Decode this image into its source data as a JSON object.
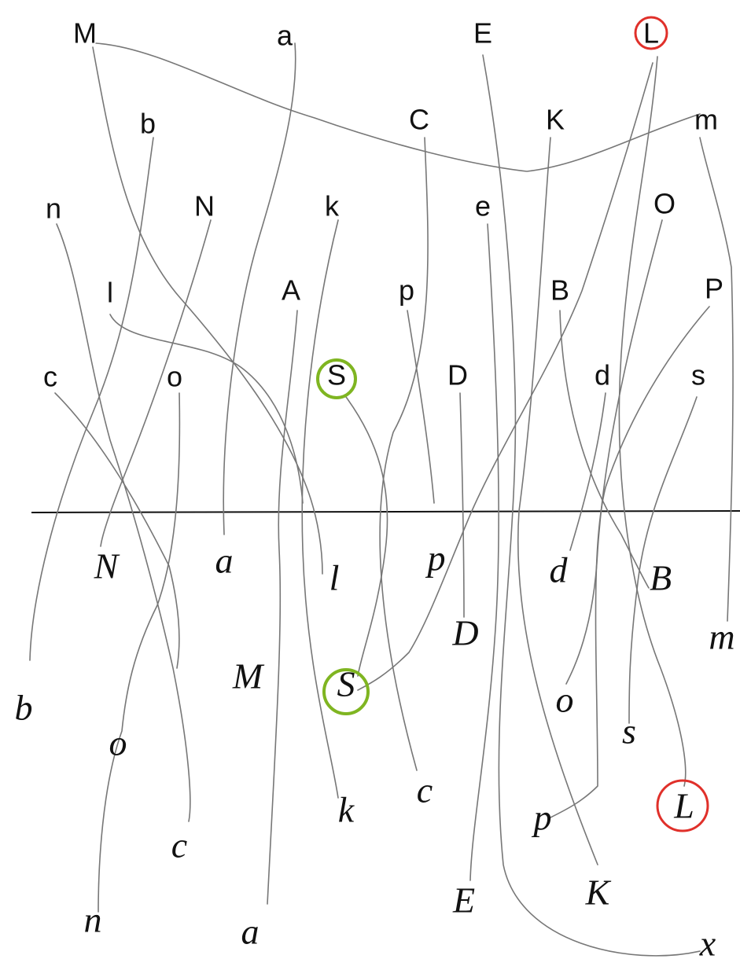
{
  "printed_letters": [
    "M",
    "a",
    "E",
    "L",
    "b",
    "C",
    "K",
    "m",
    "n",
    "N",
    "k",
    "e",
    "O",
    "l",
    "A",
    "p",
    "B",
    "P",
    "c",
    "o",
    "S",
    "D",
    "d",
    "s"
  ],
  "cursive_letters": [
    "N",
    "a",
    "l",
    "p",
    "d",
    "B",
    "m",
    "D",
    "M",
    "S",
    "b",
    "o",
    "o",
    "s",
    "L",
    "k",
    "c",
    "p",
    "c",
    "E",
    "K",
    "n",
    "a",
    "x"
  ]
}
